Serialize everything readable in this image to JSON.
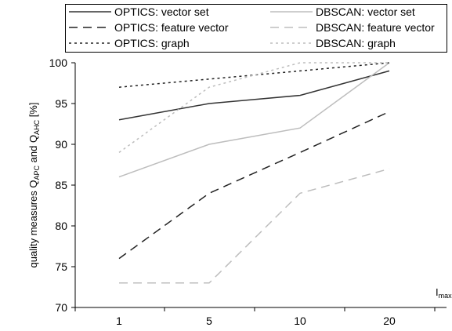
{
  "chart_data": {
    "type": "line",
    "categories": [
      "1",
      "5",
      "10",
      "20"
    ],
    "ylim": [
      70,
      100
    ],
    "yticks": [
      70,
      75,
      80,
      85,
      90,
      95,
      100
    ],
    "ylabel": {
      "prefix": "quality measures Q",
      "sub1": "APC",
      "middle": " and Q",
      "sub2": "AHC",
      "suffix": " [%]"
    },
    "xlabel": {
      "main": "I",
      "sub": "max"
    },
    "grid": false,
    "legend_position": "top",
    "series": [
      {
        "name": "OPTICS: vector set",
        "values": [
          93,
          95,
          96,
          99
        ],
        "color": "#333333",
        "dash": "solid"
      },
      {
        "name": "DBSCAN: vector set",
        "values": [
          86,
          90,
          92,
          100
        ],
        "color": "#bdbdbd",
        "dash": "solid"
      },
      {
        "name": "OPTICS: feature vector",
        "values": [
          76,
          84,
          89,
          94
        ],
        "color": "#222222",
        "dash": "dashed"
      },
      {
        "name": "DBSCAN: feature vector",
        "values": [
          73,
          73,
          84,
          87
        ],
        "color": "#bdbdbd",
        "dash": "dashed"
      },
      {
        "name": "OPTICS: graph",
        "values": [
          97,
          98,
          99,
          100
        ],
        "color": "#222222",
        "dash": "dotted"
      },
      {
        "name": "DBSCAN: graph",
        "values": [
          89,
          97,
          100,
          100
        ],
        "color": "#bdbdbd",
        "dash": "dotted"
      }
    ]
  }
}
